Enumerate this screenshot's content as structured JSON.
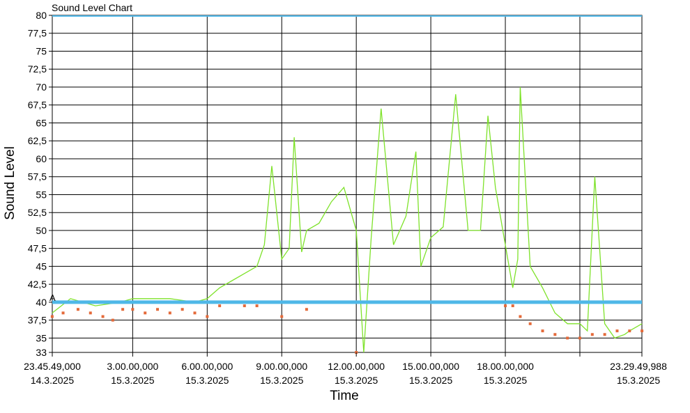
{
  "chart_data": {
    "type": "line",
    "title": "Sound Level Chart",
    "xlabel": "Time",
    "ylabel": "Sound Level",
    "ylim": [
      33,
      80
    ],
    "y_ticks": [
      "80",
      "77,5",
      "75",
      "72,5",
      "70",
      "67,5",
      "65",
      "62,5",
      "60",
      "57,5",
      "55",
      "52,5",
      "50",
      "47,5",
      "45",
      "42,5",
      "40",
      "37,5",
      "35",
      "33"
    ],
    "x_ticks": [
      {
        "time": "23.45.49,000",
        "date": "14.3.2025"
      },
      {
        "time": "3.00.00,000",
        "date": "15.3.2025"
      },
      {
        "time": "6.00.00,000",
        "date": "15.3.2025"
      },
      {
        "time": "9.00.00,000",
        "date": "15.3.2025"
      },
      {
        "time": "12.00.00,000",
        "date": "15.3.2025"
      },
      {
        "time": "15.00.00,000",
        "date": "15.3.2025"
      },
      {
        "time": "18.00.00,000",
        "date": "15.3.2025"
      },
      {
        "time": "",
        "date": ""
      },
      {
        "time": "23.29.49,988",
        "date": "15.3.2025"
      }
    ],
    "grid": true,
    "limit_line": {
      "label": "A",
      "value": 40,
      "color": "#4fb8e8"
    },
    "series": [
      {
        "color": "#7ee22a",
        "style": "line",
        "x_hours": [
          23.76,
          24.5,
          25.5,
          26.5,
          27.0,
          27.5,
          28.5,
          29.5,
          30.0,
          30.5,
          31.0,
          31.5,
          32.0,
          32.3,
          32.6,
          33.0,
          33.3,
          33.5,
          33.8,
          34.0,
          34.5,
          35.0,
          35.5,
          36.0,
          36.3,
          36.6,
          37.0,
          37.5,
          38.0,
          38.4,
          38.6,
          39.0,
          39.5,
          40.0,
          40.5,
          41.0,
          41.3,
          41.6,
          42.0,
          42.3,
          42.5,
          42.6,
          43.0,
          43.5,
          44.0,
          44.5,
          45.0,
          45.3,
          45.6,
          46.0,
          46.2,
          46.4,
          46.8,
          47.0,
          47.5
        ],
        "y": [
          38.5,
          40.5,
          39.5,
          40,
          40.5,
          40.5,
          40.5,
          40,
          40.5,
          42,
          43,
          44,
          45,
          48,
          59,
          46,
          47.5,
          63,
          47,
          50,
          51,
          54,
          56,
          50,
          33,
          49,
          67,
          48,
          52,
          61,
          45,
          49,
          50.5,
          69,
          50,
          50,
          66,
          56,
          48,
          42,
          46,
          70,
          45,
          42,
          38.5,
          37,
          37,
          36,
          57.5,
          37,
          36,
          35,
          35.5,
          36,
          37
        ]
      },
      {
        "color": "#e46a3a",
        "style": "markers",
        "x_hours": [
          23.76,
          24.2,
          24.8,
          25.3,
          25.8,
          26.2,
          26.6,
          27.0,
          27.5,
          28.0,
          28.5,
          29.0,
          29.5,
          30.0,
          30.5,
          31.0,
          31.5,
          32.0,
          33.0,
          34.0,
          36.0,
          38.0,
          40.0,
          41.0,
          41.5,
          42.0,
          42.3,
          42.6,
          43.0,
          43.5,
          44.0,
          44.5,
          45.0,
          45.5,
          46.0,
          46.5,
          47.0,
          47.5
        ],
        "y": [
          38,
          38.5,
          39,
          38.5,
          38,
          37.5,
          39,
          39,
          38.5,
          39,
          38.5,
          39,
          38.5,
          38,
          39.5,
          40,
          39.5,
          39.5,
          38,
          39,
          33,
          40,
          40,
          40,
          40,
          39.5,
          39.5,
          38,
          37,
          36,
          35.5,
          35,
          35,
          35.5,
          35.5,
          36,
          36,
          36
        ]
      }
    ]
  }
}
